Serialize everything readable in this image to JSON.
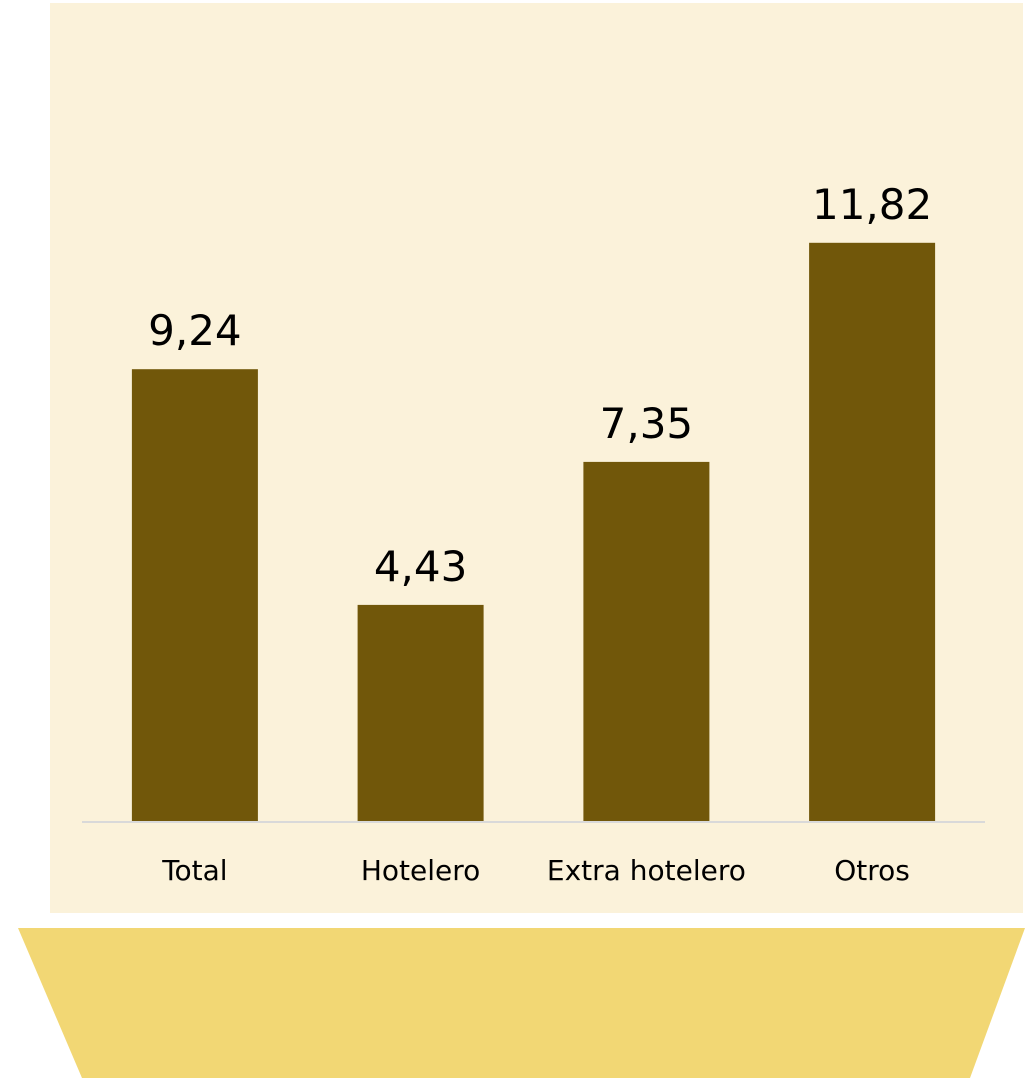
{
  "colors": {
    "panel_background": "#FBF2DA",
    "bar_fill": "#71570A",
    "axis_line": "#D9D9D9",
    "base_shape": "#F2D774"
  },
  "chart_data": {
    "type": "bar",
    "categories": [
      "Total",
      "Hotelero",
      "Extra hotelero",
      "Otros"
    ],
    "values": [
      9.24,
      4.43,
      7.35,
      11.82
    ],
    "data_labels": [
      "9,24",
      "4,43",
      "7,35",
      "11,82"
    ],
    "title": "",
    "xlabel": "",
    "ylabel": "",
    "ylim": [
      0,
      16
    ],
    "grid": false,
    "legend": "none"
  }
}
